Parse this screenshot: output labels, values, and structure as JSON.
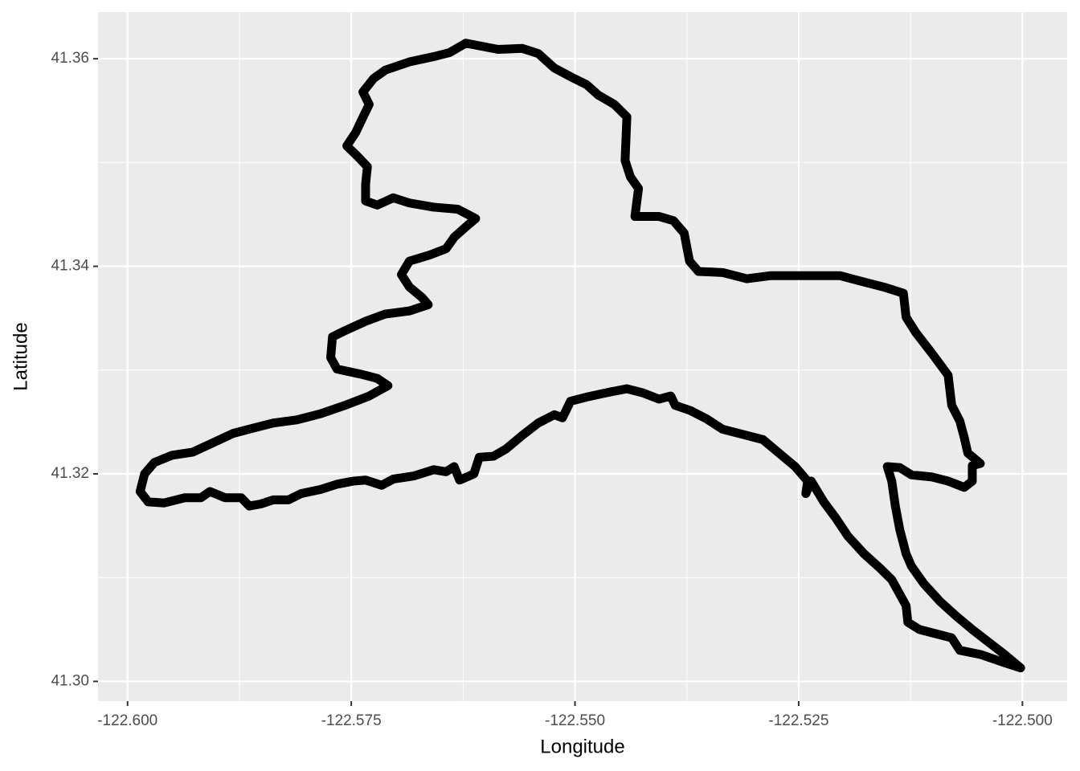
{
  "chart_data": {
    "type": "path",
    "x_label": "Longitude",
    "y_label": "Latitude",
    "color": "#000000",
    "grid": true,
    "xlim": [
      -122.6033,
      -122.495
    ],
    "ylim": [
      41.2981,
      41.3645
    ],
    "xticks": [
      {
        "value": -122.6,
        "label": "-122.600"
      },
      -122.575,
      {
        "value": -122.55,
        "label": "-122.550"
      },
      -122.525,
      {
        "value": -122.5,
        "label": "-122.500"
      }
    ],
    "yticks": [
      {
        "value": 41.3,
        "label": "41.30"
      },
      41.32,
      41.34,
      41.36
    ],
    "x": [
      -122.5002,
      -122.502,
      -122.5038,
      -122.5056,
      -122.5074,
      -122.5092,
      -122.511,
      -122.5124,
      -122.513,
      -122.5137,
      -122.5142,
      -122.5146,
      -122.5151,
      -122.5137,
      -122.5124,
      -122.5101,
      -122.5083,
      -122.5065,
      -122.5056,
      -122.5056,
      -122.5047,
      -122.5061,
      -122.5065,
      -122.507,
      -122.5079,
      -122.5083,
      -122.5101,
      -122.5119,
      -122.513,
      -122.5133,
      -122.5155,
      -122.5182,
      -122.5204,
      -122.5236,
      -122.5281,
      -122.5308,
      -122.5335,
      -122.5362,
      -122.5372,
      -122.5378,
      -122.539,
      -122.5406,
      -122.5433,
      -122.5429,
      -122.5438,
      -122.5444,
      -122.5442,
      -122.5456,
      -122.5474,
      -122.5487,
      -122.5501,
      -122.5523,
      -122.5541,
      -122.5559,
      -122.5586,
      -122.5622,
      -122.564,
      -122.5658,
      -122.5685,
      -122.5712,
      -122.5725,
      -122.5737,
      -122.573,
      -122.5739,
      -122.5745,
      -122.5755,
      -122.5743,
      -122.5732,
      -122.5734,
      -122.5734,
      -122.5721,
      -122.5703,
      -122.5685,
      -122.5658,
      -122.5631,
      -122.5611,
      -122.5622,
      -122.5635,
      -122.5644,
      -122.5662,
      -122.5685,
      -122.5694,
      -122.5685,
      -122.5671,
      -122.5664,
      -122.5685,
      -122.5712,
      -122.5734,
      -122.5757,
      -122.5771,
      -122.5773,
      -122.5766,
      -122.5739,
      -122.5721,
      -122.5709,
      -122.573,
      -122.5757,
      -122.5784,
      -122.5811,
      -122.5837,
      -122.586,
      -122.5882,
      -122.5902,
      -122.5927,
      -122.595,
      -122.597,
      -122.5981,
      -122.5986,
      -122.5977,
      -122.5959,
      -122.5936,
      -122.5918,
      -122.5908,
      -122.5891,
      -122.5873,
      -122.5864,
      -122.5851,
      -122.5837,
      -122.582,
      -122.5806,
      -122.5784,
      -122.5766,
      -122.5748,
      -122.5734,
      -122.5716,
      -122.5703,
      -122.568,
      -122.5658,
      -122.5644,
      -122.5635,
      -122.5629,
      -122.5613,
      -122.5607,
      -122.5591,
      -122.5577,
      -122.5559,
      -122.5541,
      -122.5523,
      -122.5514,
      -122.5505,
      -122.5487,
      -122.546,
      -122.5442,
      -122.5424,
      -122.5406,
      -122.5393,
      -122.5388,
      -122.5371,
      -122.5353,
      -122.5335,
      -122.5308,
      -122.529,
      -122.5272,
      -122.5254,
      -122.524,
      -122.5242,
      -122.5236,
      -122.5222,
      -122.5209,
      -122.5195,
      -122.5177,
      -122.5159,
      -122.5146,
      -122.5137,
      -122.513,
      -122.5128,
      -122.5115,
      -122.5097,
      -122.5079,
      -122.507,
      -122.5047,
      -122.502,
      -122.5002
    ],
    "values": [
      41.3013,
      41.3026,
      41.3038,
      41.305,
      41.3063,
      41.3077,
      41.3094,
      41.3111,
      41.3123,
      41.3146,
      41.3169,
      41.3193,
      41.3207,
      41.3206,
      41.3199,
      41.3197,
      41.3193,
      41.3187,
      41.3193,
      41.3208,
      41.321,
      41.322,
      41.3235,
      41.3251,
      41.3266,
      41.3295,
      41.3316,
      41.3336,
      41.3351,
      41.3374,
      41.338,
      41.3386,
      41.3391,
      41.3391,
      41.3391,
      41.3388,
      41.3394,
      41.3395,
      41.3405,
      41.3432,
      41.3444,
      41.3448,
      41.3448,
      41.3475,
      41.3486,
      41.3502,
      41.3544,
      41.3556,
      41.3565,
      41.3575,
      41.3581,
      41.3591,
      41.3605,
      41.361,
      41.3609,
      41.3615,
      41.3606,
      41.3602,
      41.3597,
      41.3589,
      41.3581,
      41.3568,
      41.3556,
      41.354,
      41.3529,
      41.3516,
      41.3506,
      41.3496,
      41.3479,
      41.3463,
      41.3459,
      41.3466,
      41.3461,
      41.3457,
      41.3455,
      41.3446,
      41.3438,
      41.3428,
      41.3417,
      41.3411,
      41.3405,
      41.3392,
      41.338,
      41.337,
      41.3363,
      41.3357,
      41.3354,
      41.3347,
      41.3338,
      41.3332,
      41.3312,
      41.3301,
      41.3296,
      41.3292,
      41.3285,
      41.3275,
      41.3266,
      41.3258,
      41.3252,
      41.3249,
      41.3244,
      41.3239,
      41.3231,
      41.3221,
      41.3218,
      41.3211,
      41.32,
      41.3183,
      41.3173,
      41.3172,
      41.3177,
      41.3177,
      41.3183,
      41.3177,
      41.3177,
      41.3169,
      41.3171,
      41.3175,
      41.3175,
      41.3181,
      41.3185,
      41.319,
      41.3193,
      41.3194,
      41.3189,
      41.3195,
      41.3198,
      41.3204,
      41.3202,
      41.3207,
      41.3194,
      41.32,
      41.3216,
      41.3217,
      41.3224,
      41.3237,
      41.3249,
      41.3257,
      41.3254,
      41.327,
      41.3274,
      41.3279,
      41.3282,
      41.3278,
      41.3272,
      41.3275,
      41.3266,
      41.3261,
      41.3253,
      41.3243,
      41.3237,
      41.3233,
      41.322,
      41.3207,
      41.3193,
      41.3181,
      41.3193,
      41.3173,
      41.3158,
      41.314,
      41.3123,
      41.3109,
      41.3098,
      41.3084,
      41.3073,
      41.3057,
      41.305,
      41.3046,
      41.3042,
      41.303,
      41.3026,
      41.3018,
      41.3013
    ]
  }
}
